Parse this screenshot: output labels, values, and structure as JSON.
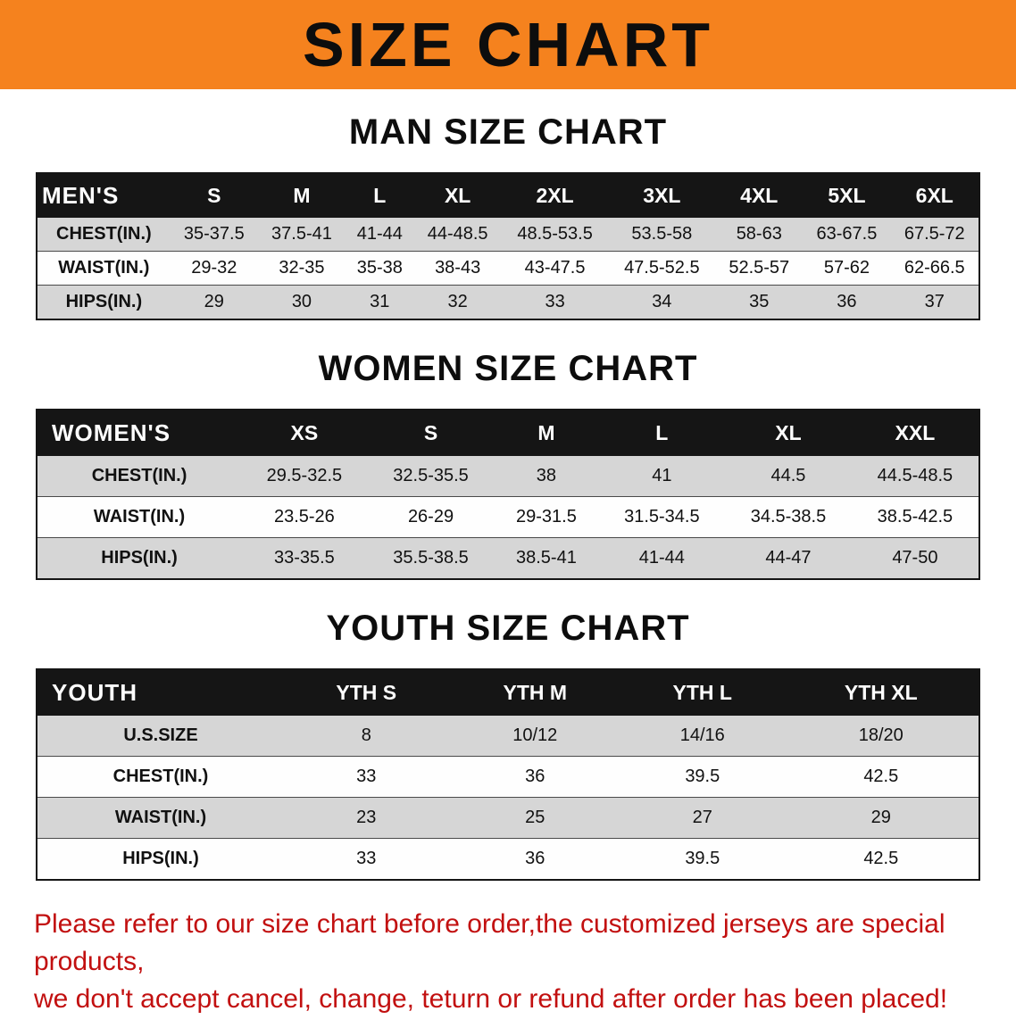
{
  "banner": {
    "title": "SIZE CHART"
  },
  "colors": {
    "banner_bg": "#F5821E",
    "stripe_gray": "#D6D6D6",
    "note_color": "#C21010"
  },
  "sections": [
    {
      "id": "men",
      "heading": "MAN SIZE CHART",
      "header": [
        "MEN'S",
        "S",
        "M",
        "L",
        "XL",
        "2XL",
        "3XL",
        "4XL",
        "5XL",
        "6XL"
      ],
      "rows": [
        [
          "CHEST(IN.)",
          "35-37.5",
          "37.5-41",
          "41-44",
          "44-48.5",
          "48.5-53.5",
          "53.5-58",
          "58-63",
          "63-67.5",
          "67.5-72"
        ],
        [
          "WAIST(IN.)",
          "29-32",
          "32-35",
          "35-38",
          "38-43",
          "43-47.5",
          "47.5-52.5",
          "52.5-57",
          "57-62",
          "62-66.5"
        ],
        [
          "HIPS(IN.)",
          "29",
          "30",
          "31",
          "32",
          "33",
          "34",
          "35",
          "36",
          "37"
        ]
      ]
    },
    {
      "id": "women",
      "heading": "WOMEN SIZE CHART",
      "header": [
        "WOMEN'S",
        "XS",
        "S",
        "M",
        "L",
        "XL",
        "XXL"
      ],
      "rows": [
        [
          "CHEST(IN.)",
          "29.5-32.5",
          "32.5-35.5",
          "38",
          "41",
          "44.5",
          "44.5-48.5"
        ],
        [
          "WAIST(IN.)",
          "23.5-26",
          "26-29",
          "29-31.5",
          "31.5-34.5",
          "34.5-38.5",
          "38.5-42.5"
        ],
        [
          "HIPS(IN.)",
          "33-35.5",
          "35.5-38.5",
          "38.5-41",
          "41-44",
          "44-47",
          "47-50"
        ]
      ]
    },
    {
      "id": "youth",
      "heading": "YOUTH SIZE CHART",
      "header": [
        "YOUTH",
        "YTH S",
        "YTH M",
        "YTH L",
        "YTH XL"
      ],
      "rows": [
        [
          "U.S.SIZE",
          "8",
          "10/12",
          "14/16",
          "18/20"
        ],
        [
          "CHEST(IN.)",
          "33",
          "36",
          "39.5",
          "42.5"
        ],
        [
          "WAIST(IN.)",
          "23",
          "25",
          "27",
          "29"
        ],
        [
          "HIPS(IN.)",
          "33",
          "36",
          "39.5",
          "42.5"
        ]
      ]
    }
  ],
  "footer": {
    "lines": [
      "Please refer to our size chart before order,the customized jerseys are special products,",
      "we don't accept cancel, change, teturn or refund after order has been placed!"
    ]
  }
}
